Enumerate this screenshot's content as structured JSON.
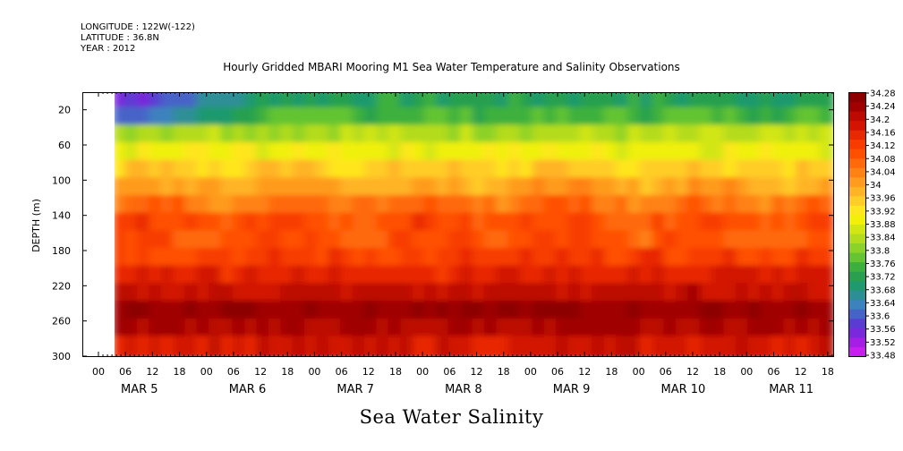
{
  "header": {
    "longitude": "LONGITUDE : 122W(-122)",
    "latitude": "LATITUDE : 36.8N",
    "year": "YEAR : 2012"
  },
  "chart_data": {
    "type": "heatmap",
    "title": "Hourly Gridded MBARI Mooring M1 Sea Water Temperature and Salinity Observations",
    "xlabel": "Sea Water Salinity",
    "ylabel": "DEPTH (m)",
    "x_hour_ticks": [
      "00",
      "06",
      "12",
      "18",
      "00",
      "06",
      "12",
      "18",
      "00",
      "06",
      "12",
      "18",
      "00",
      "06",
      "12",
      "18",
      "00",
      "06",
      "12",
      "18",
      "00",
      "06",
      "12",
      "18",
      "00",
      "06",
      "12",
      "18"
    ],
    "x_day_labels": [
      "MAR  5",
      "MAR  6",
      "MAR  7",
      "MAR  8",
      "MAR  9",
      "MAR 10",
      "MAR 11"
    ],
    "y_ticks": [
      20,
      60,
      100,
      140,
      180,
      220,
      260,
      300
    ],
    "ylim": [
      300,
      0
    ],
    "colorbar_levels": [
      "34.28",
      "34.24",
      "34.2",
      "34.16",
      "34.12",
      "34.08",
      "34.04",
      "34",
      "33.96",
      "33.92",
      "33.88",
      "33.84",
      "33.8",
      "33.76",
      "33.72",
      "33.68",
      "33.64",
      "33.6",
      "33.56",
      "33.52",
      "33.48"
    ],
    "depth_profile": [
      {
        "depth": 10,
        "value": 33.72
      },
      {
        "depth": 30,
        "value": 33.76
      },
      {
        "depth": 50,
        "value": 33.84
      },
      {
        "depth": 70,
        "value": 33.9
      },
      {
        "depth": 90,
        "value": 33.95
      },
      {
        "depth": 110,
        "value": 34.0
      },
      {
        "depth": 130,
        "value": 34.06
      },
      {
        "depth": 150,
        "value": 34.1
      },
      {
        "depth": 170,
        "value": 34.09
      },
      {
        "depth": 190,
        "value": 34.12
      },
      {
        "depth": 210,
        "value": 34.16
      },
      {
        "depth": 230,
        "value": 34.2
      },
      {
        "depth": 250,
        "value": 34.25
      },
      {
        "depth": 270,
        "value": 34.22
      },
      {
        "depth": 290,
        "value": 34.18
      }
    ]
  }
}
